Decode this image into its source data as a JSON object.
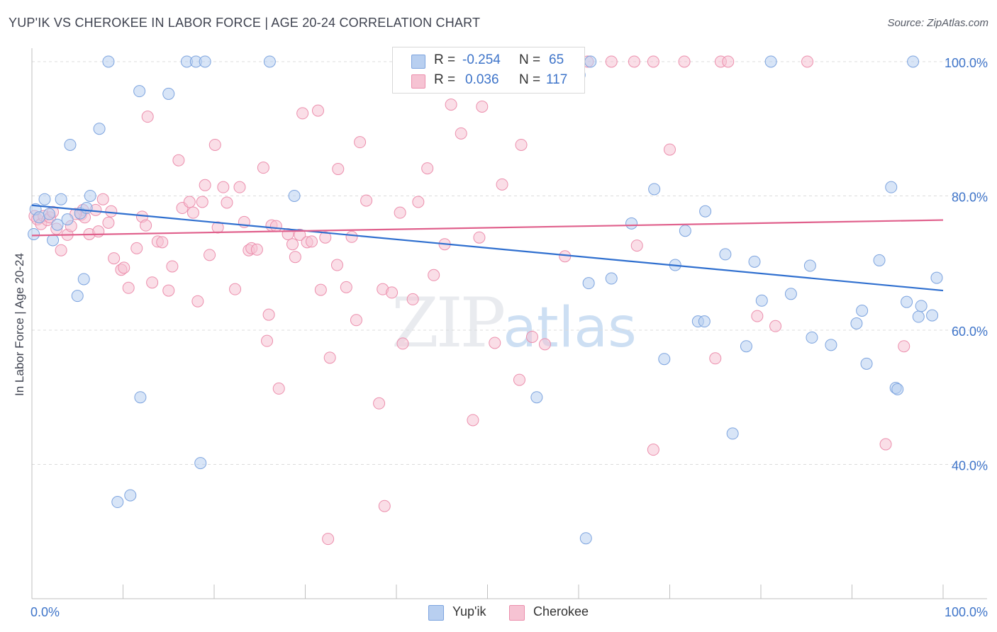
{
  "header": {
    "title": "YUP'IK VS CHEROKEE IN LABOR FORCE | AGE 20-24 CORRELATION CHART",
    "source": "Source: ZipAtlas.com"
  },
  "watermark": {
    "zip": "ZIP",
    "atlas": "atlas"
  },
  "stats": {
    "r_label": "R =",
    "n_label": "N =",
    "rows": [
      {
        "r": "-0.254",
        "n": "65"
      },
      {
        "r": "0.036",
        "n": "117"
      }
    ]
  },
  "colors": {
    "yupik_fill": "#b8cff0",
    "yupik_stroke": "#7da4df",
    "yupik_line": "#2f6fcf",
    "cherokee_fill": "#f6c3d3",
    "cherokee_stroke": "#ec8fad",
    "cherokee_line": "#e0608c",
    "tick_text": "#3e74c9"
  },
  "chart_data": {
    "type": "scatter",
    "title": "YUP'IK VS CHEROKEE IN LABOR FORCE | AGE 20-24 CORRELATION CHART",
    "xlabel": "",
    "ylabel": "In Labor Force | Age 20-24",
    "xlim": [
      0,
      100
    ],
    "ylim": [
      20,
      102
    ],
    "x_tick_labels": [
      "0.0%",
      "100.0%"
    ],
    "y_ticks": [
      40,
      60,
      80,
      100
    ],
    "y_tick_labels": [
      "40.0%",
      "60.0%",
      "80.0%",
      "100.0%"
    ],
    "grid": true,
    "series": [
      {
        "name": "Yup'ik",
        "r": -0.254,
        "n": 65,
        "trend": {
          "x": [
            0,
            100
          ],
          "y": [
            78.6,
            65.9
          ]
        },
        "points": [
          [
            0.2,
            74.3
          ],
          [
            0.4,
            78.0
          ],
          [
            1.4,
            79.5
          ],
          [
            2.3,
            73.4
          ],
          [
            2.8,
            75.7
          ],
          [
            3.2,
            79.5
          ],
          [
            3.9,
            76.5
          ],
          [
            4.2,
            87.6
          ],
          [
            5.0,
            65.1
          ],
          [
            5.3,
            77.4
          ],
          [
            5.7,
            67.6
          ],
          [
            6.4,
            80.0
          ],
          [
            7.4,
            90.0
          ],
          [
            8.4,
            100.0
          ],
          [
            11.8,
            95.6
          ],
          [
            11.9,
            50.0
          ],
          [
            9.4,
            34.4
          ],
          [
            10.8,
            35.4
          ],
          [
            15.0,
            95.2
          ],
          [
            17.0,
            100.0
          ],
          [
            18.0,
            100.0
          ],
          [
            18.5,
            40.2
          ],
          [
            19.0,
            100.0
          ],
          [
            26.1,
            100.0
          ],
          [
            28.8,
            80.0
          ],
          [
            60.1,
            98.0
          ],
          [
            61.3,
            100.0
          ],
          [
            60.8,
            29.0
          ],
          [
            61.1,
            67.0
          ],
          [
            55.4,
            50.0
          ],
          [
            63.6,
            67.7
          ],
          [
            65.8,
            75.9
          ],
          [
            68.3,
            81.0
          ],
          [
            69.4,
            55.7
          ],
          [
            70.6,
            69.7
          ],
          [
            71.7,
            74.8
          ],
          [
            73.1,
            61.3
          ],
          [
            73.8,
            61.3
          ],
          [
            73.9,
            77.7
          ],
          [
            76.1,
            71.3
          ],
          [
            76.9,
            44.6
          ],
          [
            78.4,
            57.6
          ],
          [
            79.3,
            70.2
          ],
          [
            80.1,
            64.4
          ],
          [
            81.1,
            100.0
          ],
          [
            83.3,
            65.4
          ],
          [
            85.4,
            69.6
          ],
          [
            85.6,
            58.9
          ],
          [
            87.7,
            57.8
          ],
          [
            90.5,
            61.0
          ],
          [
            91.1,
            62.9
          ],
          [
            91.6,
            55.0
          ],
          [
            93.0,
            70.4
          ],
          [
            94.3,
            81.3
          ],
          [
            94.8,
            51.4
          ],
          [
            95.0,
            51.2
          ],
          [
            96.0,
            64.2
          ],
          [
            96.7,
            100.0
          ],
          [
            97.3,
            62.0
          ],
          [
            97.6,
            63.6
          ],
          [
            98.8,
            62.2
          ],
          [
            99.3,
            67.8
          ],
          [
            0.8,
            76.8
          ],
          [
            1.9,
            77.3
          ],
          [
            6.0,
            78.2
          ]
        ]
      },
      {
        "name": "Cherokee",
        "r": 0.036,
        "n": 117,
        "trend": {
          "x": [
            0,
            100
          ],
          "y": [
            74.1,
            76.4
          ]
        },
        "points": [
          [
            0.3,
            77.0
          ],
          [
            0.6,
            76.5
          ],
          [
            1.0,
            75.8
          ],
          [
            1.3,
            77.0
          ],
          [
            1.7,
            76.4
          ],
          [
            2.0,
            76.8
          ],
          [
            2.3,
            77.6
          ],
          [
            3.2,
            71.9
          ],
          [
            3.9,
            74.2
          ],
          [
            4.3,
            75.5
          ],
          [
            5.4,
            77.2
          ],
          [
            5.6,
            77.9
          ],
          [
            5.8,
            76.8
          ],
          [
            6.3,
            74.3
          ],
          [
            7.0,
            77.9
          ],
          [
            7.3,
            74.7
          ],
          [
            7.8,
            79.5
          ],
          [
            8.4,
            76.0
          ],
          [
            8.7,
            77.7
          ],
          [
            9.0,
            70.7
          ],
          [
            9.8,
            69.0
          ],
          [
            10.1,
            69.3
          ],
          [
            10.6,
            66.3
          ],
          [
            11.5,
            72.2
          ],
          [
            12.1,
            76.9
          ],
          [
            12.5,
            75.6
          ],
          [
            12.7,
            91.8
          ],
          [
            13.2,
            67.1
          ],
          [
            13.8,
            73.2
          ],
          [
            14.3,
            73.1
          ],
          [
            15.0,
            65.9
          ],
          [
            15.4,
            69.5
          ],
          [
            16.1,
            85.3
          ],
          [
            16.5,
            78.2
          ],
          [
            17.3,
            79.1
          ],
          [
            17.7,
            77.5
          ],
          [
            18.2,
            64.3
          ],
          [
            18.7,
            79.1
          ],
          [
            19.0,
            81.6
          ],
          [
            19.5,
            71.2
          ],
          [
            20.1,
            87.6
          ],
          [
            20.4,
            75.3
          ],
          [
            21.0,
            81.3
          ],
          [
            21.4,
            79.0
          ],
          [
            22.3,
            66.1
          ],
          [
            22.8,
            81.3
          ],
          [
            23.3,
            76.1
          ],
          [
            23.8,
            71.9
          ],
          [
            24.1,
            72.2
          ],
          [
            24.7,
            72.0
          ],
          [
            25.4,
            84.2
          ],
          [
            25.8,
            58.4
          ],
          [
            26.0,
            62.3
          ],
          [
            26.3,
            75.6
          ],
          [
            26.8,
            75.5
          ],
          [
            27.1,
            51.3
          ],
          [
            28.1,
            74.3
          ],
          [
            28.6,
            72.8
          ],
          [
            28.9,
            70.9
          ],
          [
            29.4,
            74.2
          ],
          [
            29.7,
            92.3
          ],
          [
            30.2,
            73.1
          ],
          [
            30.7,
            73.2
          ],
          [
            31.4,
            92.7
          ],
          [
            31.7,
            66.0
          ],
          [
            32.2,
            73.8
          ],
          [
            32.5,
            28.9
          ],
          [
            32.7,
            55.9
          ],
          [
            33.5,
            69.7
          ],
          [
            33.6,
            84.0
          ],
          [
            34.5,
            66.4
          ],
          [
            35.1,
            73.9
          ],
          [
            35.6,
            61.5
          ],
          [
            36.0,
            88.0
          ],
          [
            36.7,
            79.3
          ],
          [
            38.1,
            49.1
          ],
          [
            38.5,
            66.1
          ],
          [
            38.7,
            33.8
          ],
          [
            39.5,
            65.6
          ],
          [
            40.4,
            77.5
          ],
          [
            40.7,
            58.0
          ],
          [
            41.8,
            64.6
          ],
          [
            42.4,
            79.1
          ],
          [
            43.4,
            84.1
          ],
          [
            44.1,
            68.2
          ],
          [
            45.3,
            72.8
          ],
          [
            46.0,
            93.6
          ],
          [
            47.1,
            89.3
          ],
          [
            48.4,
            46.6
          ],
          [
            49.1,
            73.8
          ],
          [
            49.4,
            93.3
          ],
          [
            50.8,
            58.1
          ],
          [
            51.6,
            81.7
          ],
          [
            53.7,
            87.6
          ],
          [
            53.5,
            52.6
          ],
          [
            54.9,
            59.0
          ],
          [
            56.3,
            57.9
          ],
          [
            58.5,
            71.0
          ],
          [
            59.5,
            100.0
          ],
          [
            61.0,
            100.0
          ],
          [
            63.6,
            100.0
          ],
          [
            66.4,
            72.6
          ],
          [
            66.1,
            100.0
          ],
          [
            68.2,
            100.0
          ],
          [
            68.2,
            42.2
          ],
          [
            70.0,
            86.9
          ],
          [
            71.6,
            100.0
          ],
          [
            75.6,
            100.0
          ],
          [
            75.0,
            55.8
          ],
          [
            76.4,
            100.0
          ],
          [
            79.6,
            62.1
          ],
          [
            81.6,
            60.6
          ],
          [
            85.1,
            100.0
          ],
          [
            93.7,
            43.0
          ],
          [
            95.7,
            57.6
          ],
          [
            2.7,
            75.1
          ],
          [
            4.8,
            77.3
          ]
        ]
      }
    ]
  },
  "bottom_legend": {
    "items": [
      "Yup'ik",
      "Cherokee"
    ]
  }
}
